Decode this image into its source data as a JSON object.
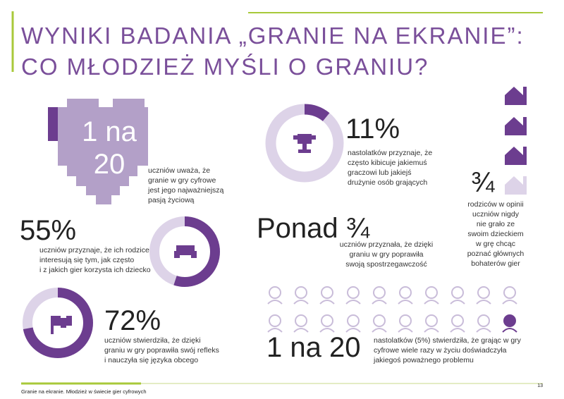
{
  "header": {
    "title_line1": "WYNIKI BADANIA „GRANIE NA EKRANIE”:",
    "title_line2": "CO MŁODZIEŻ MYŚLI O GRANIU?"
  },
  "heart_stat": {
    "headline_lines": [
      "1 na",
      "20"
    ],
    "description": [
      "uczniów uważa, że",
      "granie w gry cyfrowe",
      "jest jego najważniejszą",
      "pasją życiową"
    ]
  },
  "fan_stat": {
    "value": 11,
    "value_label": "11%",
    "description": [
      "nastolatków przyznaje, że",
      "często kibicuje jakiemuś",
      "graczowi lub jakiejś",
      "drużynie osób grających"
    ]
  },
  "parents_stat": {
    "fraction": "¾",
    "description": [
      "rodziców w opinii",
      "uczniów nigdy",
      "nie grało ze",
      "swoim dzieckiem",
      "w grę chcąc",
      "poznać głównych",
      "bohaterów gier"
    ]
  },
  "interest_stat": {
    "value": 55,
    "value_label": "55%",
    "description": [
      "uczniów przyznaje, że ich rodzice",
      "interesują się tym, jak często",
      "i z jakich gier korzysta ich dziecko"
    ]
  },
  "perception_stat": {
    "headline": "Ponad ¾",
    "description": [
      "uczniów przyznała, że dzięki",
      "graniu w gry poprawiła",
      "swoją spostrzegawczość"
    ]
  },
  "reflex_stat": {
    "value": 72,
    "value_label": "72%",
    "description": [
      "uczniów stwierdziła, że dzięki",
      "graniu w gry poprawiła swój refleks",
      "i nauczyła się języka obcego"
    ]
  },
  "problem_stat": {
    "headline": "1 na 20",
    "description": [
      "nastolatków (5%) stwierdziła, że grając w gry",
      "cyfrowe wiele razy w życiu doświadczyła",
      "jakiegoś poważnego problemu"
    ]
  },
  "footer": {
    "source": "Granie na ekranie. Młodzież w świecie gier cyfrowych",
    "page": "13"
  }
}
